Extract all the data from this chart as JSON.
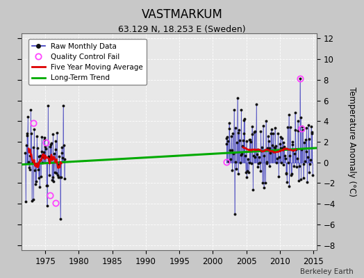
{
  "title": "VASTMARKUM",
  "subtitle": "63.129 N, 18.253 E (Sweden)",
  "ylabel": "Temperature Anomaly (°C)",
  "attribution": "Berkeley Earth",
  "xlim": [
    1971.5,
    2015.5
  ],
  "ylim": [
    -8.5,
    12.5
  ],
  "yticks": [
    -8,
    -6,
    -4,
    -2,
    0,
    2,
    4,
    6,
    8,
    10,
    12
  ],
  "xticks": [
    1975,
    1980,
    1985,
    1990,
    1995,
    2000,
    2005,
    2010,
    2015
  ],
  "fig_bg_color": "#c8c8c8",
  "plot_bg_color": "#e8e8e8",
  "grid_color": "#ffffff",
  "raw_line_color": "#3333bb",
  "raw_dot_color": "#111111",
  "ma_color": "#dd0000",
  "trend_color": "#00aa00",
  "qc_color": "#ff44ff",
  "seed": 17,
  "early_start_year": 1972,
  "early_end_year": 1978,
  "late_start_year": 2002,
  "late_end_year": 2015,
  "trend_y1971": -0.2,
  "trend_y2016": 1.4,
  "early_mean": 0.3,
  "late_mean": 1.1,
  "early_std": 2.2,
  "late_std": 1.8
}
